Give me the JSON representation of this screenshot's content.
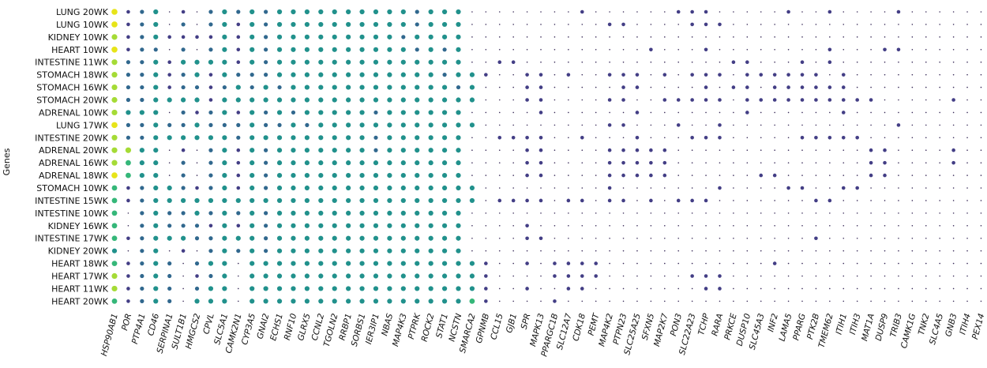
{
  "chart_data": {
    "type": "dot-matrix",
    "title": "",
    "xlabel": "",
    "ylabel": "Genes",
    "legend": "none",
    "grid": false,
    "colormap": "viridis",
    "rows": [
      "LUNG 20WK",
      "LUNG 10WK",
      "KIDNEY 10WK",
      "HEART 10WK",
      "INTESTINE 11WK",
      "STOMACH 18WK",
      "STOMACH 16WK",
      "STOMACH 20WK",
      "ADRENAL 10WK",
      "LUNG 17WK",
      "INTESTINE 20WK",
      "ADRENAL 20WK",
      "ADRENAL 16WK",
      "ADRENAL 18WK",
      "STOMACH 10WK",
      "INTESTINE 15WK",
      "INTESTINE 10WK",
      "KIDNEY 16WK",
      "INTESTINE 17WK",
      "KIDNEY 20WK",
      "HEART 18WK",
      "HEART 17WK",
      "HEART 11WK",
      "HEART 20WK"
    ],
    "columns": [
      "HSP90AB1",
      "POR",
      "PTP4A1",
      "CD46",
      "SERPINA1",
      "SULT1B1",
      "HMGCS2",
      "CPVL",
      "SLC5A1",
      "CAMK2N1",
      "CYP3A5",
      "GNAI2",
      "ECHS1",
      "RNF10",
      "GLRX5",
      "CCNL2",
      "TGOLN2",
      "RRBP1",
      "SORBS1",
      "IER3IP1",
      "NBAS",
      "MAP4K3",
      "PTPRK",
      "ROCK2",
      "STAT1",
      "NCSTN",
      "SMARCA2",
      "GPNMB",
      "CCL15",
      "GJB1",
      "SPR",
      "MAPK13",
      "PPARGC1B",
      "SLC12A7",
      "CDK18",
      "PEMT",
      "MAP4K2",
      "PTPN23",
      "SLC25A25",
      "SFXN5",
      "MAP2K7",
      "PON3",
      "SLC22A23",
      "TCHP",
      "RARA",
      "PRKCE",
      "DUSP10",
      "SLC45A3",
      "INF2",
      "LAMA5",
      "PPARG",
      "PTK2B",
      "TMEM62",
      "ITIH1",
      "ITIH3",
      "MAT1A",
      "DUSP9",
      "TRIB3",
      "CAMK1G",
      "TNK2",
      "SLC4A5",
      "GNB3",
      "ITIH4",
      "PEX14"
    ],
    "value_scale": "0 = tiny dot, 1 = dark purple, 2 = blue, 3 = teal, 4 = green, 5 = yellow-green, 6 = yellow",
    "values": [
      "6123010232323333333333233300000000000000000000000000000001000000",
      "6123020231323333333333233300000000000000000000000000000000000000",
      "5123111131323333333332333300000000000000000000000000000000000000",
      "6122020231323333333333232300000000000000000000000000000001000000",
      "5223133331323333333333333300000000000000000000000000000000000000",
      "5223123132223333333333332330000000000000000000000000000000000000",
      "5223122123232333333333333230000000000000000000000000000000000000",
      "5223333133333333333333333330000000000000000000000000000000000000",
      "5333021231323233333233333300000000000000000000000000000000000000",
      "6223223222322323333333333330000000000000000000000000000000000000",
      "5223333332333333333233333300000000000000000000000000000000000000",
      "5533010231323333333233333300000000000000000000000000000000000000",
      "5433020231323333333333333300000000000000000000000000000000000000",
      "6433020231323333333333333300000000000000000000000000000000000000",
      "4123321231323333333333333330000000000000000000000000000000000000",
      "4123333333333333333333333330000000000000000000000000000000000000",
      "4023223232323333333333333300000000000000000000000000000000000000",
      "4023222131323333333333333300000000000000000000000000000000000000",
      "4123332233323333333333333300000000000000000000000000000000000000",
      "3023010232323333333333333300000000000000000000000000000000000000",
      "4123202330333333333333333330000000000000000000000000000000000000",
      "5123201230333333333333333330000000000000000000000000000000000000",
      "5123202330333333333333333330000000000000000000000000000000000000",
      "4123203330333333333333333340000000000000000000000000000000000000"
    ],
    "extra_marks": [
      {
        "row": 0,
        "cols": [
          34,
          41,
          42,
          43,
          49,
          52
        ]
      },
      {
        "row": 1,
        "cols": [
          36,
          37,
          42,
          43,
          44
        ]
      },
      {
        "row": 3,
        "cols": [
          39,
          43,
          52,
          56
        ]
      },
      {
        "row": 4,
        "cols": [
          28,
          29,
          45,
          46,
          50,
          52
        ]
      },
      {
        "row": 5,
        "cols": [
          27,
          30,
          31,
          33,
          36,
          37,
          38,
          40,
          42,
          43,
          44,
          46,
          47,
          48,
          49,
          50,
          51,
          53
        ]
      },
      {
        "row": 6,
        "cols": [
          30,
          31,
          37,
          38,
          43,
          45,
          46,
          48,
          49,
          50,
          51,
          52,
          53
        ]
      },
      {
        "row": 7,
        "cols": [
          30,
          31,
          36,
          37,
          40,
          41,
          42,
          43,
          44,
          46,
          47,
          48,
          49,
          50,
          51,
          52,
          53,
          54,
          55,
          61
        ]
      },
      {
        "row": 8,
        "cols": [
          31,
          38,
          46,
          53
        ]
      },
      {
        "row": 9,
        "cols": [
          36,
          37,
          41,
          44,
          57
        ]
      },
      {
        "row": 10,
        "cols": [
          28,
          29,
          30,
          31,
          34,
          38,
          42,
          43,
          44,
          50,
          51,
          52,
          53,
          54
        ]
      },
      {
        "row": 11,
        "cols": [
          30,
          31,
          36,
          37,
          38,
          39,
          40,
          55,
          56,
          61
        ]
      },
      {
        "row": 12,
        "cols": [
          30,
          31,
          36,
          37,
          38,
          39,
          40,
          55,
          56,
          61
        ]
      },
      {
        "row": 13,
        "cols": [
          30,
          31,
          36,
          37,
          38,
          39,
          40,
          47,
          48,
          55,
          56
        ]
      },
      {
        "row": 14,
        "cols": [
          36,
          44,
          49,
          50,
          53,
          54
        ]
      },
      {
        "row": 15,
        "cols": [
          28,
          29,
          30,
          31,
          33,
          34,
          36,
          37,
          39,
          41,
          42,
          43,
          51,
          52
        ]
      },
      {
        "row": 17,
        "cols": [
          30
        ]
      },
      {
        "row": 18,
        "cols": [
          30,
          31,
          51
        ]
      },
      {
        "row": 19,
        "cols": []
      },
      {
        "row": 20,
        "cols": [
          27,
          30,
          32,
          33,
          34,
          35,
          48
        ]
      },
      {
        "row": 21,
        "cols": [
          27,
          32,
          33,
          34,
          35,
          42,
          43,
          44
        ]
      },
      {
        "row": 22,
        "cols": [
          27,
          30,
          33,
          34,
          43,
          44
        ]
      },
      {
        "row": 23,
        "cols": [
          27,
          32
        ]
      }
    ]
  }
}
